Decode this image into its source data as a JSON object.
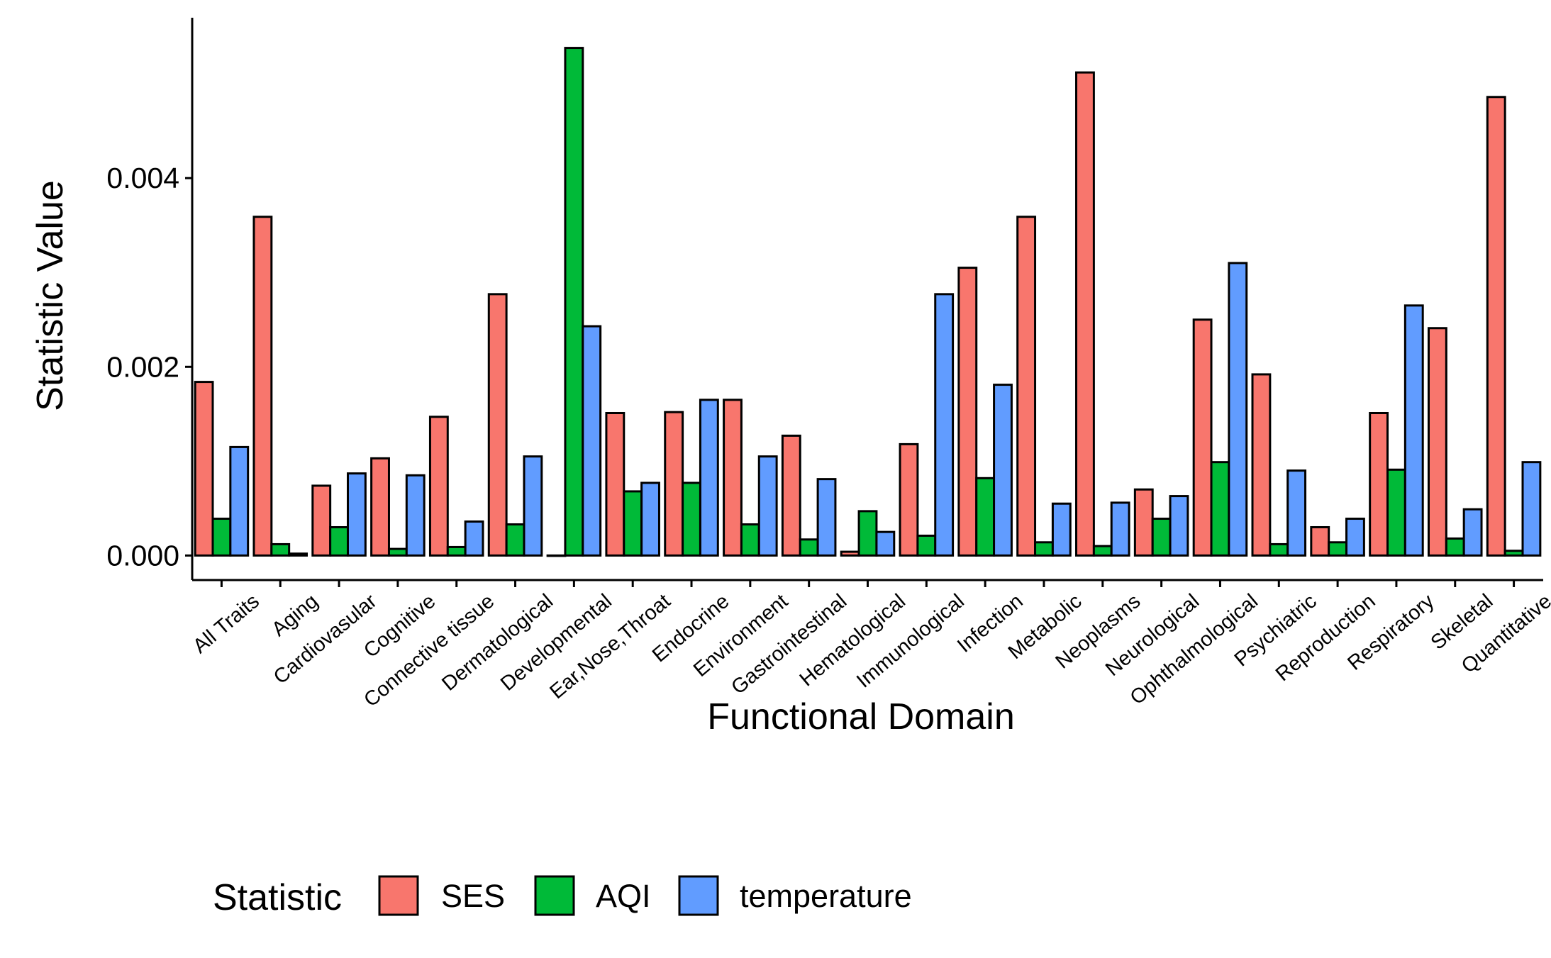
{
  "chart_data": {
    "type": "bar",
    "xlabel": "Functional Domain",
    "ylabel": "Statistic Value",
    "ylim": [
      -0.00026,
      0.0057
    ],
    "yticks": [
      "0.000",
      "0.002",
      "0.004"
    ],
    "ytick_values": [
      0,
      0.002,
      0.004
    ],
    "legend": {
      "title": "Statistic",
      "placement": "bottom"
    },
    "categories": [
      "All Traits",
      "Aging",
      "Cardiovasular",
      "Cognitive",
      "Connective tissue",
      "Dermatological",
      "Developmental",
      "Ear,Nose,Throat",
      "Endocrine",
      "Environment",
      "Gastrointestinal",
      "Hematological",
      "Immunological",
      "Infection",
      "Metabolic",
      "Neoplasms",
      "Neurological",
      "Ophthalmological",
      "Psychiatric",
      "Reproduction",
      "Respiratory",
      "Skeletal",
      "Quantitative"
    ],
    "series": [
      {
        "name": "SES",
        "color": "#F8766D",
        "values": [
          0.00184,
          0.00359,
          0.00074,
          0.00103,
          0.00147,
          0.00277,
          0.0,
          0.00151,
          0.00152,
          0.00165,
          0.00127,
          4e-05,
          0.00118,
          0.00305,
          0.00359,
          0.00512,
          0.0007,
          0.0025,
          0.00192,
          0.0003,
          0.00151,
          0.00241,
          0.00486
        ]
      },
      {
        "name": "AQI",
        "color": "#00BA38",
        "values": [
          0.00039,
          0.00012,
          0.0003,
          7e-05,
          9e-05,
          0.00033,
          0.00538,
          0.00068,
          0.00077,
          0.00033,
          0.00017,
          0.00047,
          0.00021,
          0.00082,
          0.00014,
          0.0001,
          0.00039,
          0.00099,
          0.00012,
          0.00014,
          0.00091,
          0.00018,
          5e-05
        ]
      },
      {
        "name": "temperature",
        "color": "#619CFF",
        "values": [
          0.00115,
          2e-05,
          0.00087,
          0.00085,
          0.00036,
          0.00105,
          0.00243,
          0.00077,
          0.00165,
          0.00105,
          0.00081,
          0.00025,
          0.00277,
          0.00181,
          0.00055,
          0.00056,
          0.00063,
          0.0031,
          0.0009,
          0.00039,
          0.00265,
          0.00049,
          0.00099
        ]
      }
    ]
  }
}
